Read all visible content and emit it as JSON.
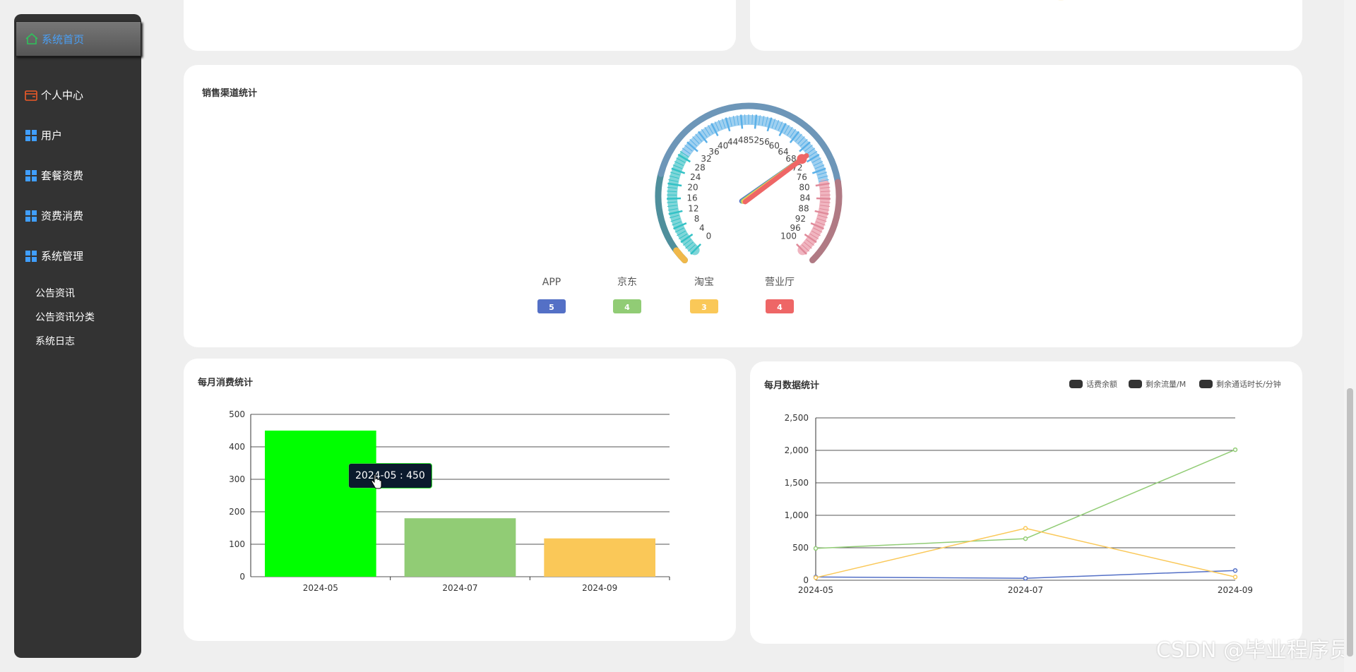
{
  "sidebar": {
    "active": {
      "label": "系统首页",
      "icon": "home-icon"
    },
    "items": [
      {
        "label": "个人中心",
        "icon": "wallet-icon"
      },
      {
        "label": "用户",
        "icon": "grid-icon"
      },
      {
        "label": "套餐资费",
        "icon": "grid-icon"
      },
      {
        "label": "资费消费",
        "icon": "grid-icon"
      },
      {
        "label": "系统管理",
        "icon": "grid-icon"
      }
    ],
    "sub_items": [
      "公告资讯",
      "公告资讯分类",
      "系统日志"
    ]
  },
  "sales_channel": {
    "title": "销售渠道统计",
    "gauge": {
      "min": 0,
      "max": 100,
      "tick_labels": [
        "0",
        "4",
        "8",
        "12",
        "16",
        "20",
        "24",
        "28",
        "32",
        "36",
        "40",
        "44",
        "48",
        "52",
        "56",
        "60",
        "64",
        "68",
        "72",
        "76",
        "80",
        "84",
        "88",
        "92",
        "96",
        "100"
      ]
    },
    "channels": [
      {
        "name": "APP",
        "value": "5",
        "color": "#5470c6"
      },
      {
        "name": "京东",
        "value": "4",
        "color": "#91cc75"
      },
      {
        "name": "淘宝",
        "value": "3",
        "color": "#fac858"
      },
      {
        "name": "营业厅",
        "value": "4",
        "color": "#ee6666"
      }
    ]
  },
  "monthly_consumption": {
    "title": "每月消费统计",
    "tooltip": "2024-05 : 450"
  },
  "monthly_data": {
    "title": "每月数据统计",
    "legend": [
      "话费余额",
      "剩余流量/M",
      "剩余通话时长/分钟"
    ]
  },
  "chart_data": [
    {
      "type": "bar",
      "categories": [
        "2024-05",
        "2024-07",
        "2024-09"
      ],
      "values": [
        450,
        180,
        118
      ],
      "colors": [
        "#00ff00",
        "#91cc75",
        "#fac858"
      ],
      "ylim": [
        0,
        500
      ],
      "yticks": [
        "0",
        "100",
        "200",
        "300",
        "400",
        "500"
      ],
      "grid": true
    },
    {
      "type": "line",
      "x": [
        "2024-05",
        "2024-07",
        "2024-09"
      ],
      "series": [
        {
          "name": "话费余额",
          "values": [
            50,
            30,
            150
          ],
          "color": "#5470c6"
        },
        {
          "name": "剩余流量/M",
          "values": [
            490,
            640,
            2010
          ],
          "color": "#91cc75"
        },
        {
          "name": "剩余通话时长/分钟",
          "values": [
            40,
            800,
            50
          ],
          "color": "#fac858"
        }
      ],
      "ylim": [
        0,
        2500
      ],
      "yticks": [
        "0",
        "500",
        "1,000",
        "1,500",
        "2,000",
        "2,500"
      ],
      "grid": true
    }
  ],
  "watermark": "CSDN @毕业程序员"
}
